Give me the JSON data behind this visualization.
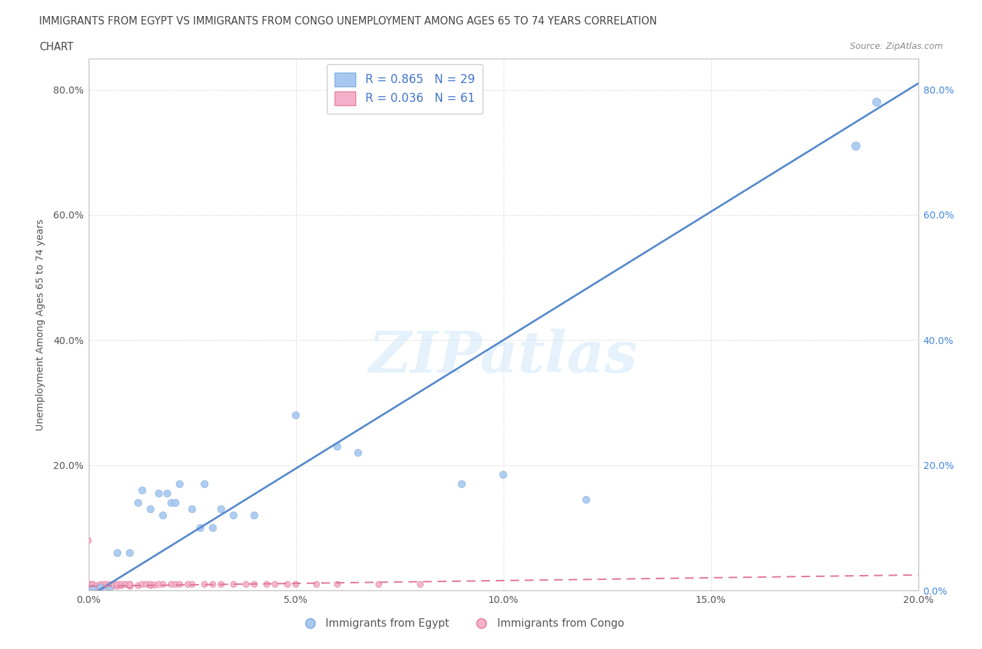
{
  "title_line1": "IMMIGRANTS FROM EGYPT VS IMMIGRANTS FROM CONGO UNEMPLOYMENT AMONG AGES 65 TO 74 YEARS CORRELATION",
  "title_line2": "CHART",
  "source": "Source: ZipAtlas.com",
  "ylabel": "Unemployment Among Ages 65 to 74 years",
  "xlim": [
    0.0,
    0.2
  ],
  "ylim": [
    0.0,
    0.85
  ],
  "xticks": [
    0.0,
    0.05,
    0.1,
    0.15,
    0.2
  ],
  "yticks": [
    0.0,
    0.2,
    0.4,
    0.6,
    0.8
  ],
  "xtick_labels": [
    "0.0%",
    "",
    "",
    "",
    "20.0%"
  ],
  "ytick_labels_left": [
    "",
    "20.0%",
    "40.0%",
    "60.0%",
    "80.0%"
  ],
  "ytick_labels_right": [
    "0.0%",
    "20.0%",
    "40.0%",
    "60.0%",
    "80.0%"
  ],
  "egypt_color": "#a8c8f0",
  "egypt_edge_color": "#7aaadd",
  "congo_color": "#f4b0c8",
  "congo_edge_color": "#e07898",
  "regression_egypt_color": "#5588cc",
  "regression_congo_color": "#e07898",
  "R_egypt": 0.865,
  "N_egypt": 29,
  "R_congo": 0.036,
  "N_congo": 61,
  "legend_label_egypt": "Immigrants from Egypt",
  "legend_label_congo": "Immigrants from Congo",
  "watermark": "ZIPatlas",
  "background_color": "#ffffff",
  "grid_color": "#cccccc",
  "egypt_points_x": [
    0.001,
    0.003,
    0.005,
    0.007,
    0.01,
    0.012,
    0.013,
    0.015,
    0.017,
    0.018,
    0.019,
    0.02,
    0.021,
    0.022,
    0.025,
    0.027,
    0.028,
    0.03,
    0.032,
    0.035,
    0.04,
    0.05,
    0.06,
    0.065,
    0.09,
    0.1,
    0.12,
    0.185,
    0.19
  ],
  "egypt_points_y": [
    0.003,
    0.005,
    0.004,
    0.06,
    0.06,
    0.14,
    0.16,
    0.13,
    0.155,
    0.12,
    0.155,
    0.14,
    0.14,
    0.17,
    0.13,
    0.1,
    0.17,
    0.1,
    0.13,
    0.12,
    0.12,
    0.28,
    0.23,
    0.22,
    0.17,
    0.185,
    0.145,
    0.71,
    0.78
  ],
  "egypt_sizes": [
    55,
    55,
    55,
    55,
    55,
    55,
    55,
    55,
    55,
    55,
    55,
    55,
    55,
    55,
    55,
    55,
    55,
    55,
    55,
    55,
    55,
    55,
    55,
    55,
    55,
    55,
    55,
    75,
    75
  ],
  "congo_points_x": [
    0.0,
    0.0,
    0.0,
    0.0,
    0.0,
    0.0,
    0.0,
    0.0,
    0.0,
    0.001,
    0.001,
    0.001,
    0.001,
    0.002,
    0.002,
    0.003,
    0.003,
    0.003,
    0.004,
    0.004,
    0.005,
    0.005,
    0.005,
    0.006,
    0.006,
    0.007,
    0.007,
    0.008,
    0.008,
    0.009,
    0.01,
    0.01,
    0.01,
    0.01,
    0.012,
    0.013,
    0.014,
    0.015,
    0.015,
    0.016,
    0.017,
    0.018,
    0.02,
    0.021,
    0.022,
    0.024,
    0.025,
    0.028,
    0.03,
    0.032,
    0.035,
    0.038,
    0.04,
    0.043,
    0.045,
    0.048,
    0.05,
    0.055,
    0.06,
    0.07,
    0.08
  ],
  "congo_points_y": [
    0.003,
    0.005,
    0.005,
    0.007,
    0.008,
    0.01,
    0.01,
    0.01,
    0.08,
    0.005,
    0.007,
    0.01,
    0.01,
    0.005,
    0.008,
    0.005,
    0.007,
    0.01,
    0.007,
    0.01,
    0.005,
    0.008,
    0.01,
    0.007,
    0.01,
    0.007,
    0.01,
    0.008,
    0.01,
    0.01,
    0.007,
    0.008,
    0.01,
    0.01,
    0.008,
    0.01,
    0.01,
    0.008,
    0.01,
    0.009,
    0.01,
    0.01,
    0.01,
    0.01,
    0.01,
    0.01,
    0.01,
    0.01,
    0.01,
    0.01,
    0.01,
    0.01,
    0.01,
    0.01,
    0.01,
    0.01,
    0.01,
    0.01,
    0.01,
    0.01,
    0.01
  ],
  "congo_sizes": [
    40,
    40,
    40,
    40,
    40,
    40,
    40,
    40,
    40,
    40,
    40,
    40,
    40,
    40,
    40,
    40,
    40,
    40,
    40,
    40,
    40,
    40,
    40,
    40,
    40,
    40,
    40,
    40,
    40,
    40,
    40,
    40,
    40,
    40,
    40,
    40,
    40,
    40,
    40,
    40,
    40,
    40,
    40,
    40,
    40,
    40,
    40,
    40,
    40,
    40,
    40,
    40,
    40,
    40,
    40,
    40,
    40,
    40,
    40,
    40,
    40
  ],
  "regression_egypt_x0": 0.0,
  "regression_egypt_y0": -0.01,
  "regression_egypt_x1": 0.2,
  "regression_egypt_y1": 0.81,
  "regression_congo_x0": 0.0,
  "regression_congo_y0": 0.007,
  "regression_congo_x1": 0.2,
  "regression_congo_y1": 0.025
}
